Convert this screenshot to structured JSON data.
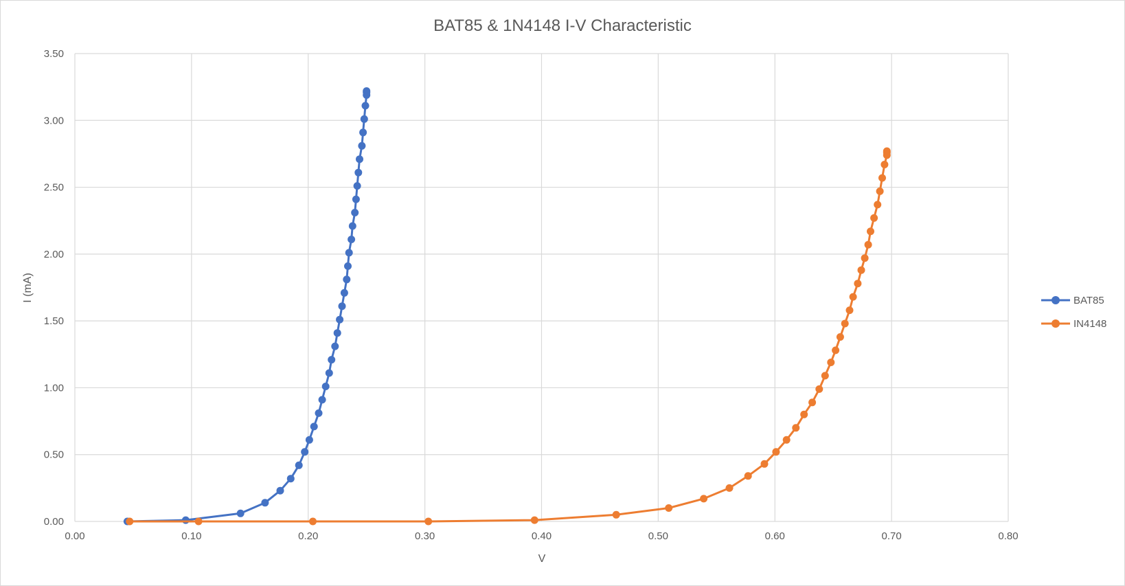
{
  "chart_data": {
    "type": "scatter",
    "title": "BAT85 & 1N4148 I-V Characteristic",
    "xlabel": "V",
    "ylabel": "I (mA)",
    "xlim": [
      0,
      0.8
    ],
    "ylim": [
      0,
      3.5
    ],
    "x_ticks": [
      "0.00",
      "0.10",
      "0.20",
      "0.30",
      "0.40",
      "0.50",
      "0.60",
      "0.70",
      "0.80"
    ],
    "y_ticks": [
      "0.00",
      "0.50",
      "1.00",
      "1.50",
      "2.00",
      "2.50",
      "3.00",
      "3.50"
    ],
    "grid": true,
    "legend_position": "right",
    "series": [
      {
        "name": "BAT85",
        "color": "#4472C4",
        "points": [
          [
            0.045,
            0.0
          ],
          [
            0.095,
            0.01
          ],
          [
            0.142,
            0.06
          ],
          [
            0.163,
            0.14
          ],
          [
            0.176,
            0.23
          ],
          [
            0.185,
            0.32
          ],
          [
            0.192,
            0.42
          ],
          [
            0.197,
            0.52
          ],
          [
            0.201,
            0.61
          ],
          [
            0.205,
            0.71
          ],
          [
            0.209,
            0.81
          ],
          [
            0.212,
            0.91
          ],
          [
            0.215,
            1.01
          ],
          [
            0.218,
            1.11
          ],
          [
            0.22,
            1.21
          ],
          [
            0.223,
            1.31
          ],
          [
            0.225,
            1.41
          ],
          [
            0.227,
            1.51
          ],
          [
            0.229,
            1.61
          ],
          [
            0.231,
            1.71
          ],
          [
            0.233,
            1.81
          ],
          [
            0.234,
            1.91
          ],
          [
            0.235,
            2.01
          ],
          [
            0.237,
            2.11
          ],
          [
            0.238,
            2.21
          ],
          [
            0.24,
            2.31
          ],
          [
            0.241,
            2.41
          ],
          [
            0.242,
            2.51
          ],
          [
            0.243,
            2.61
          ],
          [
            0.244,
            2.71
          ],
          [
            0.246,
            2.81
          ],
          [
            0.247,
            2.91
          ],
          [
            0.248,
            3.01
          ],
          [
            0.249,
            3.11
          ],
          [
            0.25,
            3.19
          ],
          [
            0.25,
            3.21
          ],
          [
            0.25,
            3.22
          ]
        ]
      },
      {
        "name": "IN4148",
        "color": "#ED7D31",
        "points": [
          [
            0.047,
            0.0
          ],
          [
            0.106,
            0.0
          ],
          [
            0.204,
            0.0
          ],
          [
            0.303,
            0.0
          ],
          [
            0.394,
            0.01
          ],
          [
            0.464,
            0.05
          ],
          [
            0.509,
            0.1
          ],
          [
            0.539,
            0.17
          ],
          [
            0.561,
            0.25
          ],
          [
            0.577,
            0.34
          ],
          [
            0.591,
            0.43
          ],
          [
            0.601,
            0.52
          ],
          [
            0.61,
            0.61
          ],
          [
            0.618,
            0.7
          ],
          [
            0.625,
            0.8
          ],
          [
            0.632,
            0.89
          ],
          [
            0.638,
            0.99
          ],
          [
            0.643,
            1.09
          ],
          [
            0.648,
            1.19
          ],
          [
            0.652,
            1.28
          ],
          [
            0.656,
            1.38
          ],
          [
            0.66,
            1.48
          ],
          [
            0.664,
            1.58
          ],
          [
            0.667,
            1.68
          ],
          [
            0.671,
            1.78
          ],
          [
            0.674,
            1.88
          ],
          [
            0.677,
            1.97
          ],
          [
            0.68,
            2.07
          ],
          [
            0.682,
            2.17
          ],
          [
            0.685,
            2.27
          ],
          [
            0.688,
            2.37
          ],
          [
            0.69,
            2.47
          ],
          [
            0.692,
            2.57
          ],
          [
            0.694,
            2.67
          ],
          [
            0.696,
            2.74
          ],
          [
            0.696,
            2.76
          ],
          [
            0.696,
            2.77
          ]
        ]
      }
    ]
  }
}
